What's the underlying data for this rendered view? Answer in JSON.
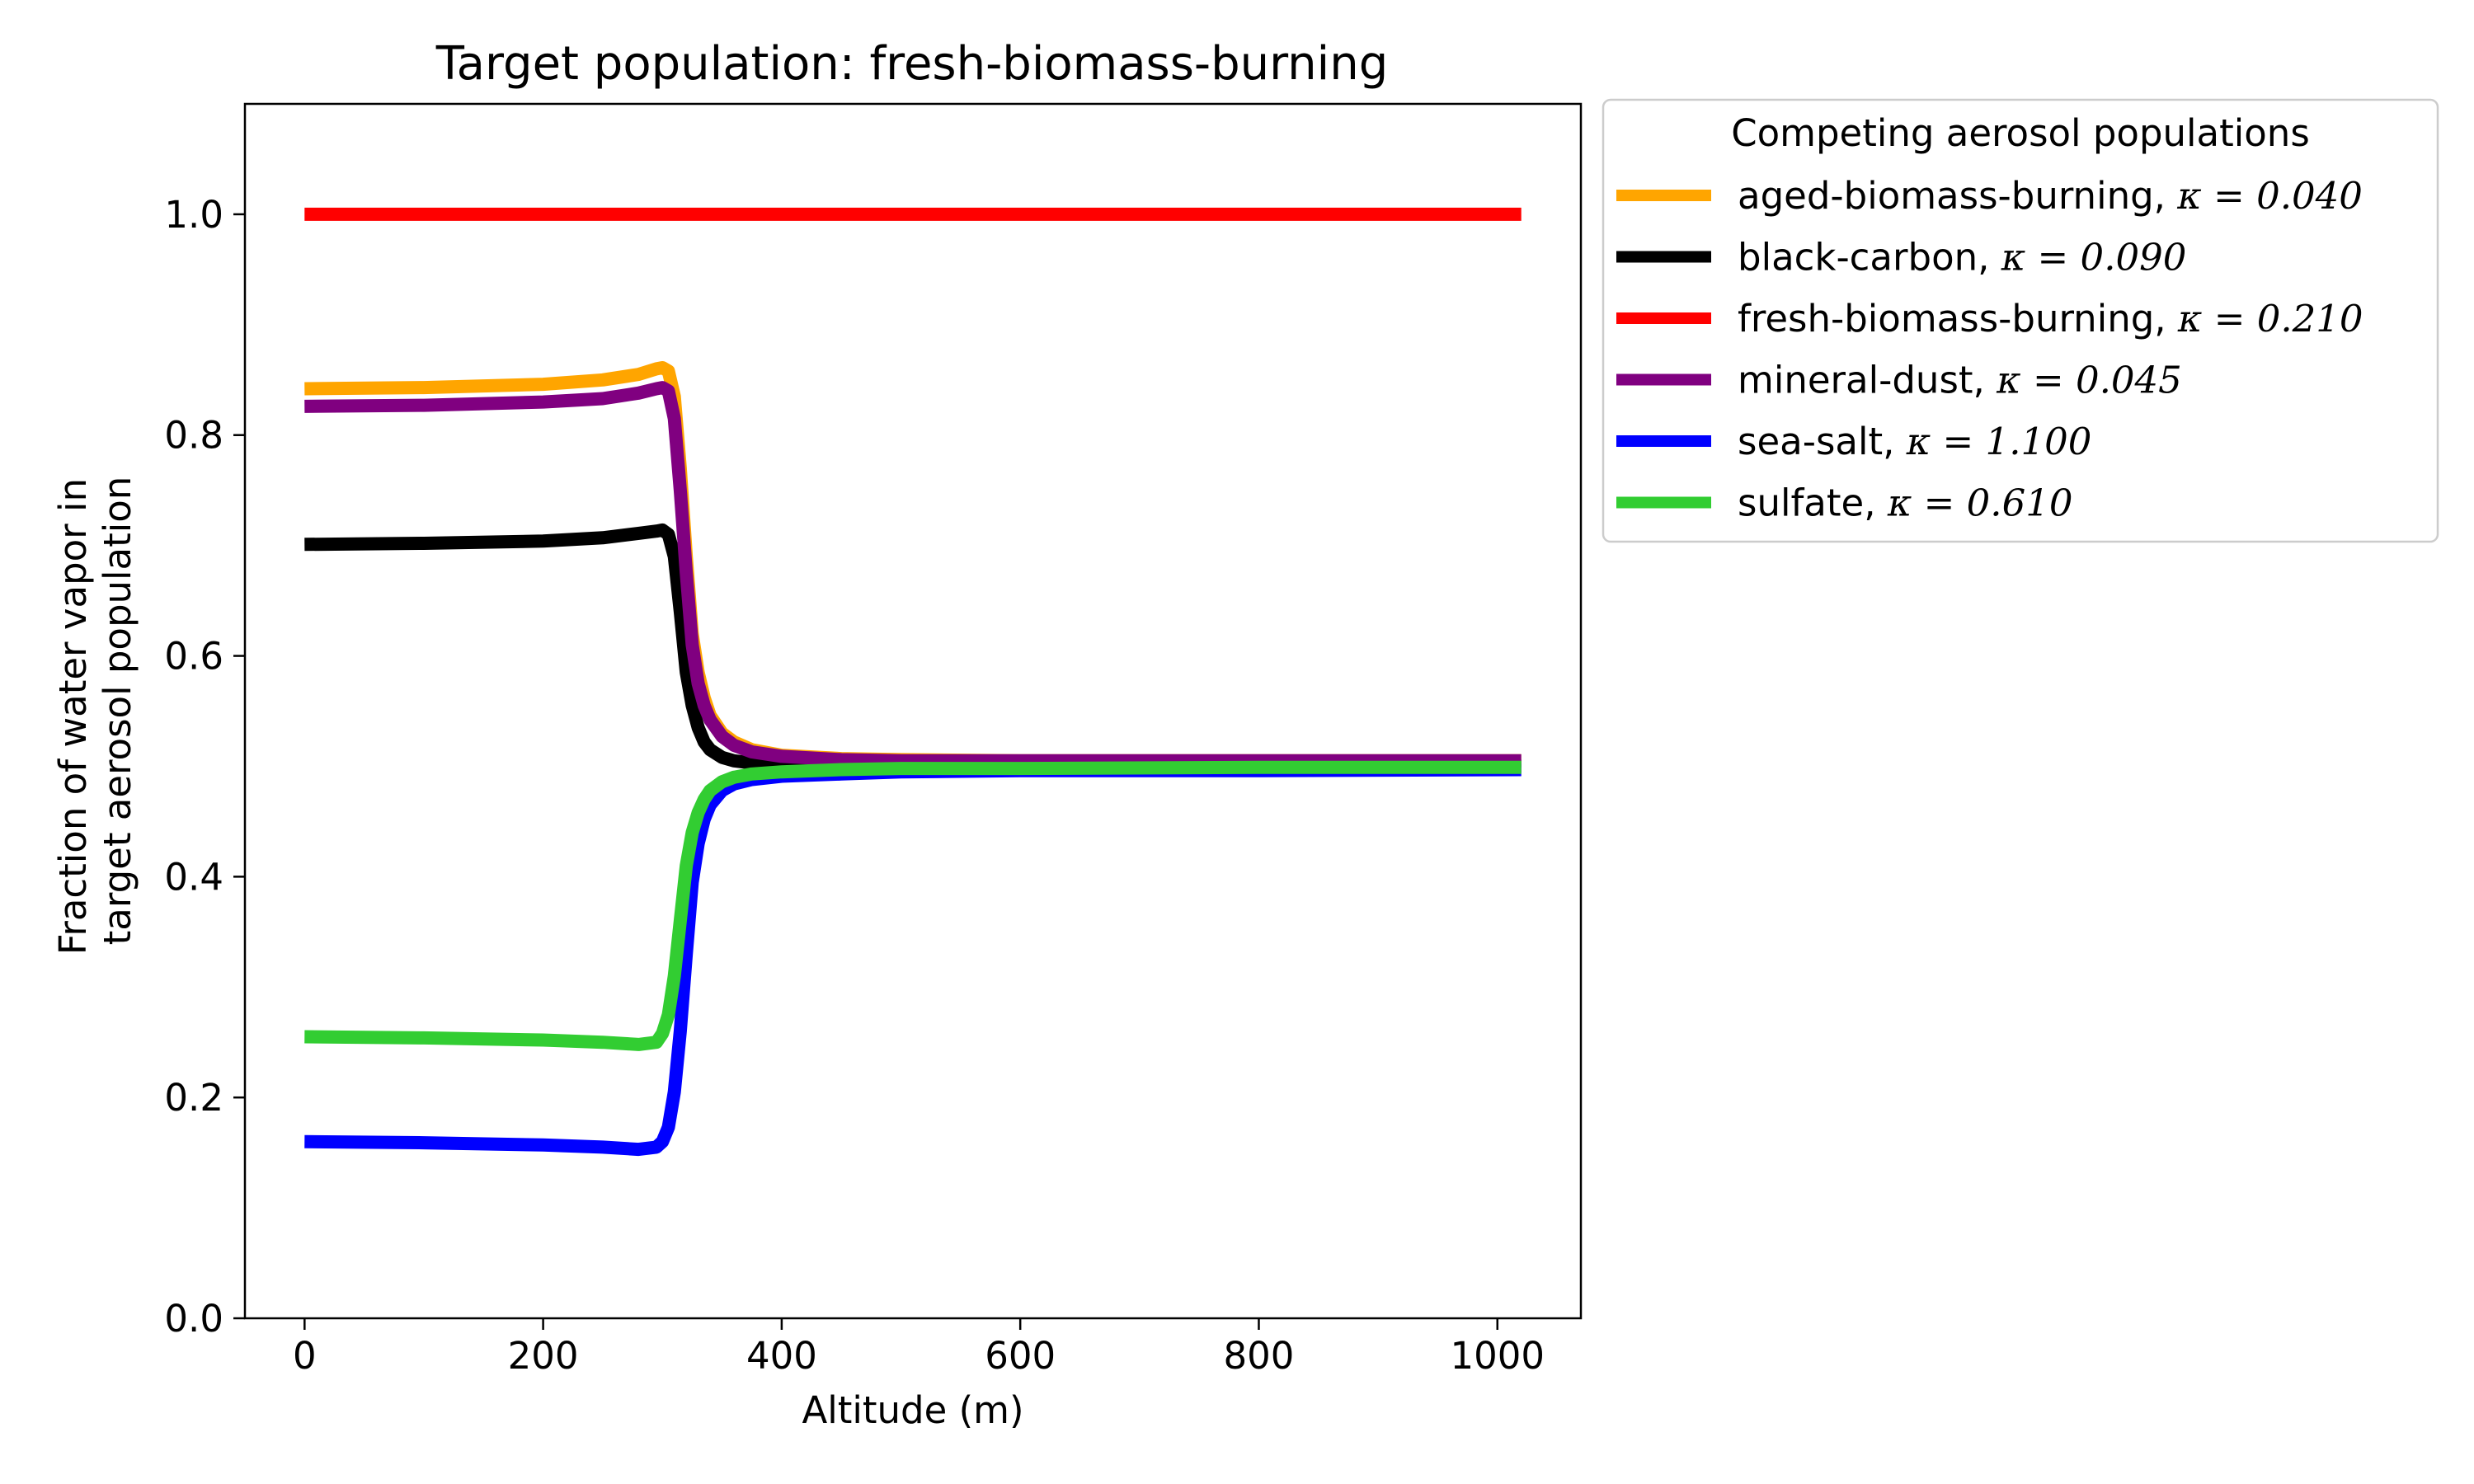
{
  "chart_data": {
    "type": "line",
    "title": "Target population: fresh-biomass-burning",
    "xlabel": "Altitude (m)",
    "ylabel": [
      "Fraction of water vapor in",
      "target aerosol population"
    ],
    "xlim": [
      -50,
      1070
    ],
    "ylim": [
      0.0,
      1.1
    ],
    "xticks": [
      0,
      200,
      400,
      600,
      800,
      1000
    ],
    "xtick_labels": [
      "0",
      "200",
      "400",
      "600",
      "800",
      "1000"
    ],
    "yticks": [
      0.0,
      0.2,
      0.4,
      0.6,
      0.8,
      1.0
    ],
    "ytick_labels": [
      "0.0",
      "0.2",
      "0.4",
      "0.6",
      "0.8",
      "1.0"
    ],
    "grid": false,
    "legend": {
      "title": "Competing aerosol populations",
      "placement": "outside-upper-right"
    },
    "x": [
      0,
      100,
      200,
      250,
      280,
      295,
      300,
      305,
      310,
      315,
      320,
      325,
      330,
      335,
      340,
      350,
      360,
      375,
      400,
      450,
      500,
      600,
      800,
      1020
    ],
    "series": [
      {
        "name": "aged-biomass-burning",
        "kappa_text": "κ = 0.040",
        "color": "#FFA500",
        "values": [
          0.842,
          0.843,
          0.846,
          0.85,
          0.855,
          0.86,
          0.861,
          0.858,
          0.835,
          0.77,
          0.69,
          0.62,
          0.585,
          0.562,
          0.546,
          0.53,
          0.522,
          0.515,
          0.51,
          0.507,
          0.506,
          0.505,
          0.505,
          0.505
        ]
      },
      {
        "name": "black-carbon",
        "kappa_text": "κ = 0.090",
        "color": "#000000",
        "values": [
          0.701,
          0.702,
          0.704,
          0.707,
          0.711,
          0.713,
          0.714,
          0.71,
          0.69,
          0.64,
          0.585,
          0.555,
          0.535,
          0.522,
          0.515,
          0.508,
          0.505,
          0.503,
          0.502,
          0.501,
          0.5,
          0.5,
          0.5,
          0.5
        ]
      },
      {
        "name": "fresh-biomass-burning",
        "kappa_text": "κ = 0.210",
        "color": "#FF0000",
        "values": [
          1.0,
          1.0,
          1.0,
          1.0,
          1.0,
          1.0,
          1.0,
          1.0,
          1.0,
          1.0,
          1.0,
          1.0,
          1.0,
          1.0,
          1.0,
          1.0,
          1.0,
          1.0,
          1.0,
          1.0,
          1.0,
          1.0,
          1.0,
          1.0
        ]
      },
      {
        "name": "mineral-dust",
        "kappa_text": "κ = 0.045",
        "color": "#800080",
        "values": [
          0.826,
          0.827,
          0.83,
          0.833,
          0.838,
          0.842,
          0.843,
          0.84,
          0.815,
          0.75,
          0.675,
          0.61,
          0.575,
          0.555,
          0.542,
          0.527,
          0.519,
          0.513,
          0.509,
          0.506,
          0.505,
          0.505,
          0.505,
          0.505
        ]
      },
      {
        "name": "sea-salt",
        "kappa_text": "κ = 1.100",
        "color": "#0000FF",
        "values": [
          0.16,
          0.159,
          0.157,
          0.155,
          0.153,
          0.155,
          0.16,
          0.173,
          0.205,
          0.26,
          0.33,
          0.395,
          0.43,
          0.452,
          0.465,
          0.478,
          0.484,
          0.488,
          0.491,
          0.493,
          0.495,
          0.496,
          0.496,
          0.497
        ]
      },
      {
        "name": "sulfate",
        "kappa_text": "κ = 0.610",
        "color": "#32CD32",
        "values": [
          0.255,
          0.254,
          0.252,
          0.25,
          0.248,
          0.25,
          0.258,
          0.275,
          0.31,
          0.36,
          0.41,
          0.44,
          0.458,
          0.47,
          0.478,
          0.486,
          0.49,
          0.493,
          0.495,
          0.497,
          0.498,
          0.498,
          0.499,
          0.499
        ]
      }
    ]
  }
}
